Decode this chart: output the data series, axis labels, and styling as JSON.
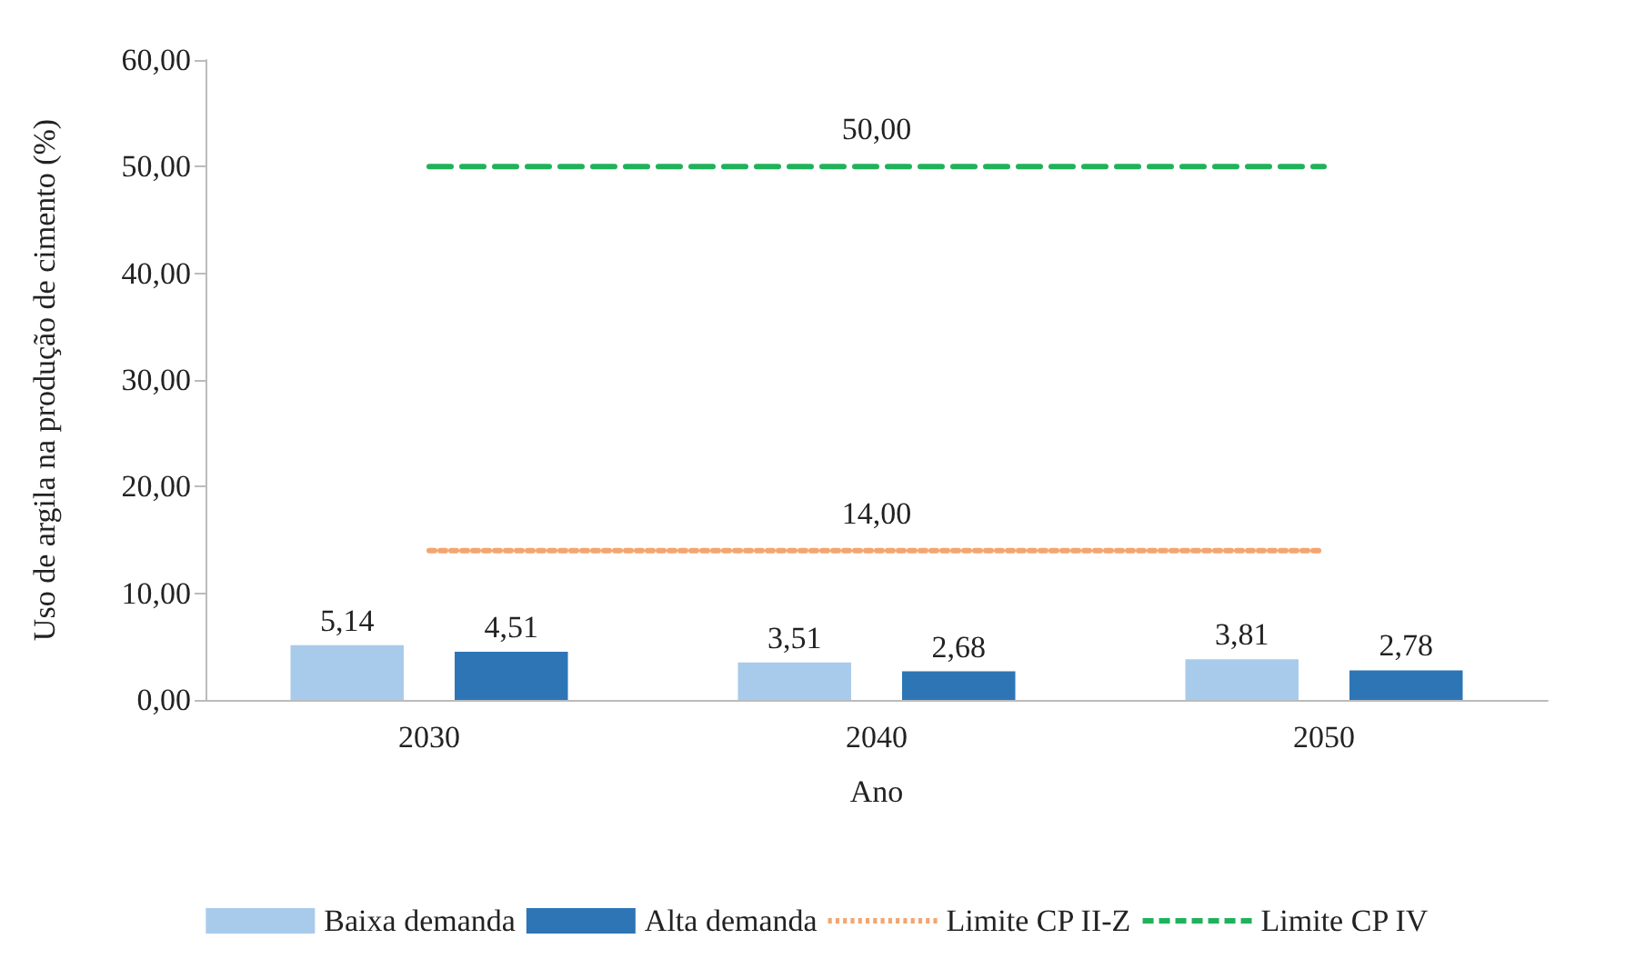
{
  "chart_data": {
    "type": "bar",
    "xlabel": "Ano",
    "ylabel": "Uso de argila na produção de cimento (%)",
    "categories": [
      "2030",
      "2040",
      "2050"
    ],
    "series": [
      {
        "name": "Baixa demanda",
        "color": "#a9cbeb",
        "values": [
          5.14,
          3.51,
          3.81
        ],
        "value_labels": [
          "5,14",
          "3,51",
          "3,81"
        ]
      },
      {
        "name": "Alta demanda",
        "color": "#2e75b6",
        "values": [
          4.51,
          2.68,
          2.78
        ],
        "value_labels": [
          "4,51",
          "2,68",
          "2,78"
        ]
      },
      {
        "name": "Limite CP II-Z",
        "type": "line",
        "color": "#f4a56f",
        "line_style": "dotted",
        "values": [
          14,
          14,
          14
        ],
        "value_labels": [
          null,
          "14,00",
          null
        ]
      },
      {
        "name": "Limite CP IV",
        "type": "line",
        "color": "#1fb25a",
        "line_style": "dashed",
        "values": [
          50,
          50,
          50
        ],
        "value_labels": [
          null,
          "50,00",
          null
        ]
      }
    ],
    "ylim": [
      0,
      60
    ],
    "yticks": [
      {
        "value": 0,
        "label": "0,00"
      },
      {
        "value": 10,
        "label": "10,00"
      },
      {
        "value": 20,
        "label": "20,00"
      },
      {
        "value": 30,
        "label": "30,00"
      },
      {
        "value": 40,
        "label": "40,00"
      },
      {
        "value": 50,
        "label": "50,00"
      },
      {
        "value": 60,
        "label": "60,00"
      }
    ],
    "grid": false,
    "legend": "bottom",
    "marker": "none"
  }
}
